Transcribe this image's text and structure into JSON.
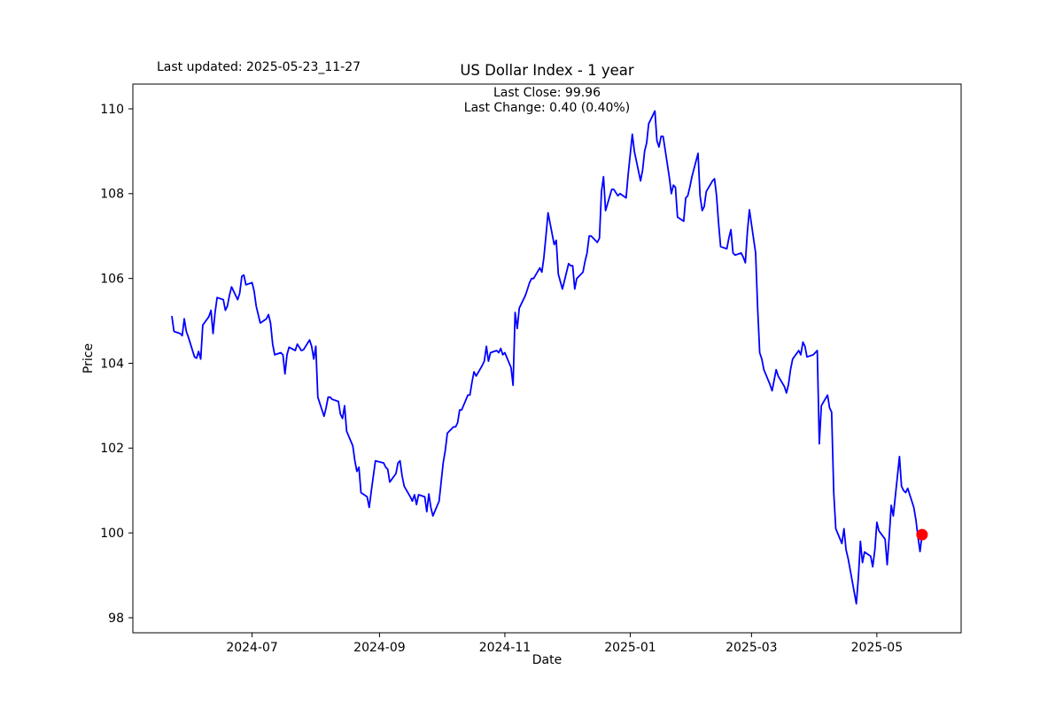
{
  "header": {
    "title": "US Dollar Index - 1 year",
    "last_updated": "Last updated: 2025-05-23_11-27"
  },
  "annotation": {
    "last_close": "Last Close: 99.96",
    "last_change": "Last Change: 0.40 (0.40%)"
  },
  "chart_data": {
    "type": "line",
    "title": "US Dollar Index - 1 year",
    "xlabel": "Date",
    "ylabel": "Price",
    "legend": "none",
    "grid": false,
    "line_color": "#0000ff",
    "marker_color": "#ff0000",
    "axis_color": "#000000",
    "last_close": 99.96,
    "last_change": "0.40 (0.40%)",
    "xlim": [
      "2024-05-04",
      "2025-06-11"
    ],
    "ylim": [
      97.645,
      110.584
    ],
    "y_ticks": [
      {
        "value": 98,
        "label": "98"
      },
      {
        "value": 100,
        "label": "100"
      },
      {
        "value": 102,
        "label": "102"
      },
      {
        "value": 104,
        "label": "104"
      },
      {
        "value": 106,
        "label": "106"
      },
      {
        "value": 108,
        "label": "108"
      },
      {
        "value": 110,
        "label": "110"
      }
    ],
    "x_ticks": [
      {
        "date": "2024-07-01",
        "label": "2024-07"
      },
      {
        "date": "2024-09-01",
        "label": "2024-09"
      },
      {
        "date": "2024-11-01",
        "label": "2024-11"
      },
      {
        "date": "2025-01-01",
        "label": "2025-01"
      },
      {
        "date": "2025-03-01",
        "label": "2025-03"
      },
      {
        "date": "2025-05-01",
        "label": "2025-05"
      }
    ],
    "series": [
      {
        "name": "US Dollar Index",
        "points": [
          [
            "2024-05-23",
            105.1
          ],
          [
            "2024-05-24",
            104.75
          ],
          [
            "2024-05-27",
            104.7
          ],
          [
            "2024-05-28",
            104.65
          ],
          [
            "2024-05-29",
            105.05
          ],
          [
            "2024-05-30",
            104.75
          ],
          [
            "2024-05-31",
            104.62
          ],
          [
            "2024-06-03",
            104.15
          ],
          [
            "2024-06-04",
            104.12
          ],
          [
            "2024-06-05",
            104.28
          ],
          [
            "2024-06-06",
            104.1
          ],
          [
            "2024-06-07",
            104.9
          ],
          [
            "2024-06-10",
            105.1
          ],
          [
            "2024-06-11",
            105.25
          ],
          [
            "2024-06-12",
            104.7
          ],
          [
            "2024-06-13",
            105.2
          ],
          [
            "2024-06-14",
            105.55
          ],
          [
            "2024-06-17",
            105.5
          ],
          [
            "2024-06-18",
            105.25
          ],
          [
            "2024-06-19",
            105.35
          ],
          [
            "2024-06-20",
            105.6
          ],
          [
            "2024-06-21",
            105.8
          ],
          [
            "2024-06-24",
            105.5
          ],
          [
            "2024-06-25",
            105.65
          ],
          [
            "2024-06-26",
            106.05
          ],
          [
            "2024-06-27",
            106.08
          ],
          [
            "2024-06-28",
            105.85
          ],
          [
            "2024-07-01",
            105.9
          ],
          [
            "2024-07-02",
            105.7
          ],
          [
            "2024-07-03",
            105.35
          ],
          [
            "2024-07-05",
            104.95
          ],
          [
            "2024-07-08",
            105.05
          ],
          [
            "2024-07-09",
            105.15
          ],
          [
            "2024-07-10",
            104.95
          ],
          [
            "2024-07-11",
            104.45
          ],
          [
            "2024-07-12",
            104.2
          ],
          [
            "2024-07-15",
            104.25
          ],
          [
            "2024-07-16",
            104.2
          ],
          [
            "2024-07-17",
            103.75
          ],
          [
            "2024-07-18",
            104.2
          ],
          [
            "2024-07-19",
            104.38
          ],
          [
            "2024-07-22",
            104.3
          ],
          [
            "2024-07-23",
            104.45
          ],
          [
            "2024-07-24",
            104.38
          ],
          [
            "2024-07-25",
            104.3
          ],
          [
            "2024-07-26",
            104.32
          ],
          [
            "2024-07-29",
            104.55
          ],
          [
            "2024-07-30",
            104.4
          ],
          [
            "2024-07-31",
            104.1
          ],
          [
            "2024-08-01",
            104.4
          ],
          [
            "2024-08-02",
            103.2
          ],
          [
            "2024-08-05",
            102.75
          ],
          [
            "2024-08-06",
            102.95
          ],
          [
            "2024-08-07",
            103.2
          ],
          [
            "2024-08-08",
            103.2
          ],
          [
            "2024-08-09",
            103.15
          ],
          [
            "2024-08-12",
            103.1
          ],
          [
            "2024-08-13",
            102.8
          ],
          [
            "2024-08-14",
            102.7
          ],
          [
            "2024-08-15",
            103.0
          ],
          [
            "2024-08-16",
            102.4
          ],
          [
            "2024-08-19",
            102.05
          ],
          [
            "2024-08-20",
            101.7
          ],
          [
            "2024-08-21",
            101.45
          ],
          [
            "2024-08-22",
            101.55
          ],
          [
            "2024-08-23",
            100.95
          ],
          [
            "2024-08-26",
            100.85
          ],
          [
            "2024-08-27",
            100.6
          ],
          [
            "2024-08-28",
            100.98
          ],
          [
            "2024-08-29",
            101.35
          ],
          [
            "2024-08-30",
            101.7
          ],
          [
            "2024-09-03",
            101.65
          ],
          [
            "2024-09-04",
            101.55
          ],
          [
            "2024-09-05",
            101.5
          ],
          [
            "2024-09-06",
            101.2
          ],
          [
            "2024-09-09",
            101.4
          ],
          [
            "2024-09-10",
            101.65
          ],
          [
            "2024-09-11",
            101.7
          ],
          [
            "2024-09-12",
            101.35
          ],
          [
            "2024-09-13",
            101.1
          ],
          [
            "2024-09-16",
            100.85
          ],
          [
            "2024-09-17",
            100.75
          ],
          [
            "2024-09-18",
            100.9
          ],
          [
            "2024-09-19",
            100.67
          ],
          [
            "2024-09-20",
            100.9
          ],
          [
            "2024-09-23",
            100.85
          ],
          [
            "2024-09-24",
            100.5
          ],
          [
            "2024-09-25",
            100.92
          ],
          [
            "2024-09-26",
            100.6
          ],
          [
            "2024-09-27",
            100.4
          ],
          [
            "2024-09-30",
            100.75
          ],
          [
            "2024-10-01",
            101.2
          ],
          [
            "2024-10-02",
            101.65
          ],
          [
            "2024-10-03",
            101.95
          ],
          [
            "2024-10-04",
            102.35
          ],
          [
            "2024-10-07",
            102.5
          ],
          [
            "2024-10-08",
            102.5
          ],
          [
            "2024-10-09",
            102.6
          ],
          [
            "2024-10-10",
            102.9
          ],
          [
            "2024-10-11",
            102.9
          ],
          [
            "2024-10-14",
            103.25
          ],
          [
            "2024-10-15",
            103.25
          ],
          [
            "2024-10-16",
            103.55
          ],
          [
            "2024-10-17",
            103.8
          ],
          [
            "2024-10-18",
            103.7
          ],
          [
            "2024-10-21",
            103.95
          ],
          [
            "2024-10-22",
            104.05
          ],
          [
            "2024-10-23",
            104.4
          ],
          [
            "2024-10-24",
            104.05
          ],
          [
            "2024-10-25",
            104.25
          ],
          [
            "2024-10-28",
            104.3
          ],
          [
            "2024-10-29",
            104.25
          ],
          [
            "2024-10-30",
            104.35
          ],
          [
            "2024-10-31",
            104.2
          ],
          [
            "2024-11-01",
            104.25
          ],
          [
            "2024-11-04",
            103.9
          ],
          [
            "2024-11-05",
            103.48
          ],
          [
            "2024-11-06",
            105.2
          ],
          [
            "2024-11-07",
            104.82
          ],
          [
            "2024-11-08",
            105.3
          ],
          [
            "2024-11-11",
            105.6
          ],
          [
            "2024-11-12",
            105.75
          ],
          [
            "2024-11-13",
            105.9
          ],
          [
            "2024-11-14",
            106.0
          ],
          [
            "2024-11-15",
            106.0
          ],
          [
            "2024-11-18",
            106.25
          ],
          [
            "2024-11-19",
            106.15
          ],
          [
            "2024-11-20",
            106.5
          ],
          [
            "2024-11-21",
            107.0
          ],
          [
            "2024-11-22",
            107.55
          ],
          [
            "2024-11-25",
            106.8
          ],
          [
            "2024-11-26",
            106.9
          ],
          [
            "2024-11-27",
            106.1
          ],
          [
            "2024-11-29",
            105.75
          ],
          [
            "2024-12-02",
            106.35
          ],
          [
            "2024-12-03",
            106.3
          ],
          [
            "2024-12-04",
            106.3
          ],
          [
            "2024-12-05",
            105.75
          ],
          [
            "2024-12-06",
            106.0
          ],
          [
            "2024-12-09",
            106.15
          ],
          [
            "2024-12-10",
            106.4
          ],
          [
            "2024-12-11",
            106.6
          ],
          [
            "2024-12-12",
            107.0
          ],
          [
            "2024-12-13",
            107.0
          ],
          [
            "2024-12-16",
            106.85
          ],
          [
            "2024-12-17",
            106.95
          ],
          [
            "2024-12-18",
            108.05
          ],
          [
            "2024-12-19",
            108.4
          ],
          [
            "2024-12-20",
            107.6
          ],
          [
            "2024-12-23",
            108.1
          ],
          [
            "2024-12-24",
            108.1
          ],
          [
            "2024-12-26",
            107.95
          ],
          [
            "2024-12-27",
            108.0
          ],
          [
            "2024-12-30",
            107.9
          ],
          [
            "2024-12-31",
            108.45
          ],
          [
            "2025-01-02",
            109.4
          ],
          [
            "2025-01-03",
            109.0
          ],
          [
            "2025-01-06",
            108.3
          ],
          [
            "2025-01-07",
            108.55
          ],
          [
            "2025-01-08",
            109.0
          ],
          [
            "2025-01-09",
            109.2
          ],
          [
            "2025-01-10",
            109.65
          ],
          [
            "2025-01-13",
            109.95
          ],
          [
            "2025-01-14",
            109.25
          ],
          [
            "2025-01-15",
            109.1
          ],
          [
            "2025-01-16",
            109.35
          ],
          [
            "2025-01-17",
            109.35
          ],
          [
            "2025-01-20",
            108.4
          ],
          [
            "2025-01-21",
            108.0
          ],
          [
            "2025-01-22",
            108.2
          ],
          [
            "2025-01-23",
            108.15
          ],
          [
            "2025-01-24",
            107.45
          ],
          [
            "2025-01-27",
            107.35
          ],
          [
            "2025-01-28",
            107.9
          ],
          [
            "2025-01-29",
            107.95
          ],
          [
            "2025-01-30",
            108.15
          ],
          [
            "2025-01-31",
            108.4
          ],
          [
            "2025-02-03",
            108.95
          ],
          [
            "2025-02-04",
            107.95
          ],
          [
            "2025-02-05",
            107.6
          ],
          [
            "2025-02-06",
            107.7
          ],
          [
            "2025-02-07",
            108.05
          ],
          [
            "2025-02-10",
            108.3
          ],
          [
            "2025-02-11",
            108.35
          ],
          [
            "2025-02-12",
            107.95
          ],
          [
            "2025-02-13",
            107.3
          ],
          [
            "2025-02-14",
            106.75
          ],
          [
            "2025-02-17",
            106.7
          ],
          [
            "2025-02-18",
            106.95
          ],
          [
            "2025-02-19",
            107.15
          ],
          [
            "2025-02-20",
            106.6
          ],
          [
            "2025-02-21",
            106.55
          ],
          [
            "2025-02-24",
            106.6
          ],
          [
            "2025-02-25",
            106.5
          ],
          [
            "2025-02-26",
            106.37
          ],
          [
            "2025-02-27",
            107.1
          ],
          [
            "2025-02-28",
            107.62
          ],
          [
            "2025-03-03",
            106.6
          ],
          [
            "2025-03-04",
            105.3
          ],
          [
            "2025-03-05",
            104.25
          ],
          [
            "2025-03-06",
            104.1
          ],
          [
            "2025-03-07",
            103.85
          ],
          [
            "2025-03-10",
            103.5
          ],
          [
            "2025-03-11",
            103.35
          ],
          [
            "2025-03-12",
            103.6
          ],
          [
            "2025-03-13",
            103.85
          ],
          [
            "2025-03-14",
            103.7
          ],
          [
            "2025-03-17",
            103.45
          ],
          [
            "2025-03-18",
            103.3
          ],
          [
            "2025-03-19",
            103.5
          ],
          [
            "2025-03-20",
            103.85
          ],
          [
            "2025-03-21",
            104.1
          ],
          [
            "2025-03-24",
            104.3
          ],
          [
            "2025-03-25",
            104.2
          ],
          [
            "2025-03-26",
            104.5
          ],
          [
            "2025-03-27",
            104.4
          ],
          [
            "2025-03-28",
            104.15
          ],
          [
            "2025-03-31",
            104.2
          ],
          [
            "2025-04-01",
            104.25
          ],
          [
            "2025-04-02",
            104.3
          ],
          [
            "2025-04-03",
            102.1
          ],
          [
            "2025-04-04",
            103.0
          ],
          [
            "2025-04-07",
            103.25
          ],
          [
            "2025-04-08",
            102.95
          ],
          [
            "2025-04-09",
            102.85
          ],
          [
            "2025-04-10",
            100.95
          ],
          [
            "2025-04-11",
            100.1
          ],
          [
            "2025-04-14",
            99.75
          ],
          [
            "2025-04-15",
            100.1
          ],
          [
            "2025-04-16",
            99.6
          ],
          [
            "2025-04-17",
            99.4
          ],
          [
            "2025-04-21",
            98.33
          ],
          [
            "2025-04-22",
            98.95
          ],
          [
            "2025-04-23",
            99.8
          ],
          [
            "2025-04-24",
            99.3
          ],
          [
            "2025-04-25",
            99.55
          ],
          [
            "2025-04-28",
            99.45
          ],
          [
            "2025-04-29",
            99.2
          ],
          [
            "2025-04-30",
            99.6
          ],
          [
            "2025-05-01",
            100.25
          ],
          [
            "2025-05-02",
            100.05
          ],
          [
            "2025-05-05",
            99.85
          ],
          [
            "2025-05-06",
            99.25
          ],
          [
            "2025-05-07",
            99.9
          ],
          [
            "2025-05-08",
            100.65
          ],
          [
            "2025-05-09",
            100.4
          ],
          [
            "2025-05-12",
            101.8
          ],
          [
            "2025-05-13",
            101.1
          ],
          [
            "2025-05-14",
            101.0
          ],
          [
            "2025-05-15",
            100.95
          ],
          [
            "2025-05-16",
            101.05
          ],
          [
            "2025-05-19",
            100.6
          ],
          [
            "2025-05-20",
            100.3
          ],
          [
            "2025-05-21",
            99.9
          ],
          [
            "2025-05-22",
            99.56
          ],
          [
            "2025-05-23",
            99.96
          ]
        ]
      }
    ]
  }
}
